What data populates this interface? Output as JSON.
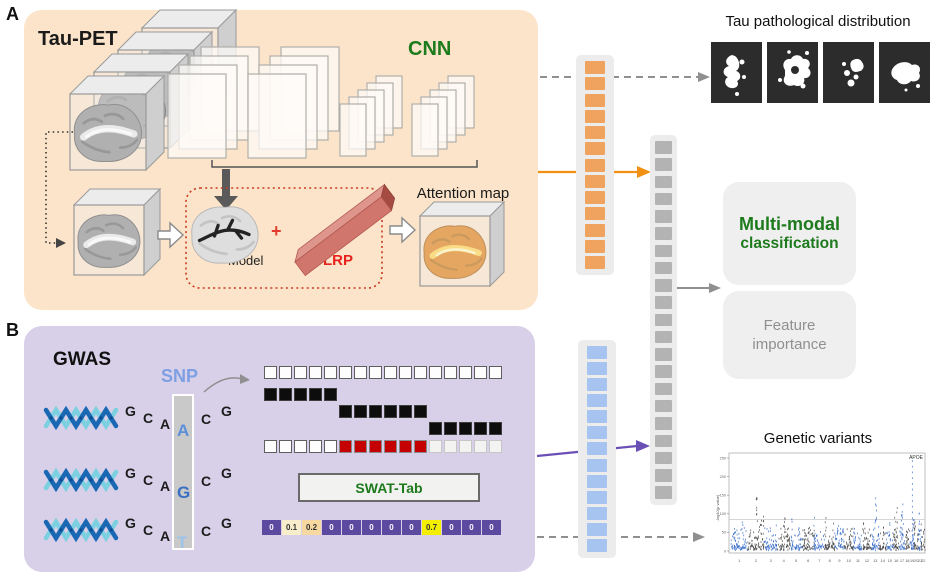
{
  "panelA": {
    "label": "A",
    "title": "Tau-PET",
    "cnn_label": "CNN",
    "model_label": "Model",
    "plus_sign": "+",
    "lrp_label": "LRP",
    "attention_label": "Attention map",
    "bg_color": "#fbe4c9"
  },
  "panelB": {
    "label": "B",
    "title": "GWAS",
    "snp_label": "SNP",
    "bg_color": "#d7d0e8",
    "sequences": [
      {
        "letters": [
          "G",
          "C",
          "A",
          "A",
          "C",
          "G"
        ],
        "variant": "A",
        "variant_color": "#5b8fd9"
      },
      {
        "letters": [
          "G",
          "C",
          "A",
          "G",
          "C",
          "G"
        ],
        "variant": "G",
        "variant_color": "#3a6fc4"
      },
      {
        "letters": [
          "G",
          "C",
          "A",
          "T",
          "C",
          "G"
        ],
        "variant": "T",
        "variant_color": "#9dc3ea"
      }
    ],
    "encoding_grid": {
      "columns": 16,
      "rows": [
        {
          "cells": [
            {
              "type": "white",
              "start": 0,
              "count": 16
            }
          ]
        },
        {
          "cells": [
            {
              "type": "black",
              "start": 0,
              "count": 5
            }
          ]
        },
        {
          "cells": [
            {
              "type": "black",
              "start": 5,
              "count": 6
            }
          ]
        },
        {
          "cells": [
            {
              "type": "black",
              "start": 11,
              "count": 5
            }
          ]
        },
        {
          "cells": [
            {
              "type": "white",
              "start": 0,
              "count": 5
            },
            {
              "type": "red",
              "start": 5,
              "count": 6
            },
            {
              "type": "faded",
              "start": 11,
              "count": 5
            }
          ]
        }
      ]
    },
    "swat_label": "SWAT-Tab",
    "weights": [
      "0",
      "0.1",
      "0.2",
      "0",
      "0",
      "0",
      "0",
      "0",
      "0.7",
      "0",
      "0",
      "0"
    ],
    "weight_highlights": {
      "1": "#f8eecb",
      "2": "#f6d8a0",
      "8": "#f4ef00"
    },
    "weight_base_color": "#5b4aa0"
  },
  "vectors": {
    "orange": {
      "count": 13,
      "color": "#f0a35e"
    },
    "blue": {
      "count": 13,
      "color": "#a6c4ef"
    },
    "gray": {
      "count": 21,
      "color": "#b3b3b3"
    }
  },
  "outputs": {
    "tau_title": "Tau pathological distribution",
    "multimodal_label_1": "Multi-modal",
    "multimodal_label_2": "classification",
    "feature_label_1": "Feature",
    "feature_label_2": "importance",
    "genetic_title": "Genetic variants"
  },
  "accent_colors": {
    "green": "#1d7a1d",
    "red": "#e8211c",
    "orange_arrow": "#f29111",
    "purple_arrow": "#6a50b4",
    "gray_arrow": "#8f8f8f",
    "snp_blue": "#7d9fe3"
  },
  "chart_data": {
    "type": "scatter",
    "subtype": "manhattan",
    "title": "Genetic variants",
    "ylabel": "-log10(p value)",
    "ylim": [
      0,
      250
    ],
    "y_ticks": [
      0,
      50,
      100,
      150,
      200,
      250
    ],
    "x_ticks": [
      "1",
      "2",
      "3",
      "4",
      "5",
      "6",
      "7",
      "8",
      "9",
      "10",
      "11",
      "12",
      "13",
      "14",
      "15",
      "16",
      "17",
      "18",
      "19",
      "20",
      "21",
      "22"
    ],
    "threshold_line": 85,
    "annotations": [
      {
        "label": "APOE",
        "chromosome": "19",
        "peak_value": 240
      }
    ],
    "notable_peaks": {
      "2": 150,
      "4": 135,
      "13": 155,
      "16": 120,
      "17": 130,
      "19": 240
    },
    "colors": {
      "chr_odd": "#3b6fc9",
      "chr_even": "#4a4a4a",
      "threshold": "#c9c9c9"
    },
    "legend": "none",
    "grid": false
  }
}
